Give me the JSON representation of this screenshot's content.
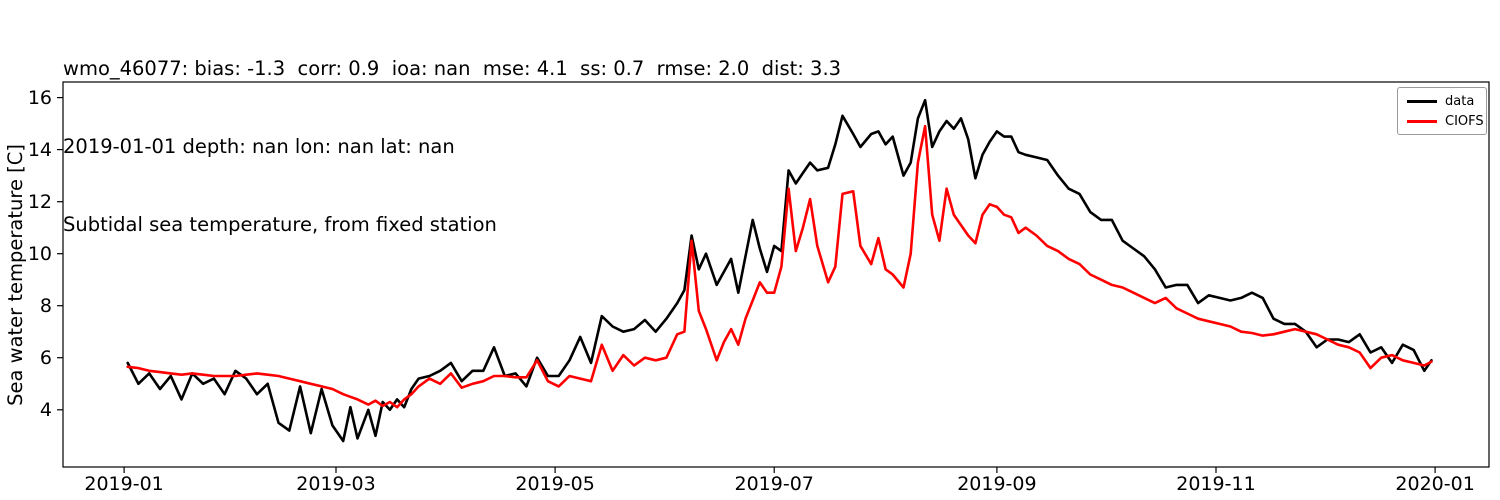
{
  "title": {
    "line1": "wmo_46077: bias: -1.3  corr: 0.9  ioa: nan  mse: 4.1  ss: 0.7  rmse: 2.0  dist: 3.3",
    "line2": "2019-01-01 depth: nan lon: nan lat: nan",
    "line3": "Subtidal sea temperature, from fixed station"
  },
  "legend": {
    "entries": [
      {
        "label": "data",
        "color": "#000000"
      },
      {
        "label": "CIOFS",
        "color": "#ff0000"
      }
    ]
  },
  "chart_data": {
    "type": "line",
    "title": "wmo_46077: bias: -1.3  corr: 0.9  ioa: nan  mse: 4.1  ss: 0.7  rmse: 2.0  dist: 3.3",
    "subtitle": "2019-01-01 depth: nan lon: nan lat: nan",
    "axes_title": "Subtidal sea temperature, from fixed station",
    "xlabel": "",
    "ylabel": "Sea water temperature [C]",
    "grid": false,
    "legend_position": "upper right",
    "x_axis": {
      "start_date": "2019-01-01",
      "unit": "days since 2019-01-01",
      "tick_days": [
        0,
        59,
        120,
        181,
        243,
        304,
        365
      ],
      "tick_labels": [
        "2019-01",
        "2019-03",
        "2019-05",
        "2019-07",
        "2019-09",
        "2019-11",
        "2020-01"
      ],
      "xlim_days": [
        -17,
        380
      ]
    },
    "y_axis": {
      "ticks": [
        4,
        6,
        8,
        10,
        12,
        14,
        16
      ],
      "tick_labels": [
        "4",
        "6",
        "8",
        "10",
        "12",
        "14",
        "16"
      ],
      "ylim": [
        1.8,
        16.6
      ]
    },
    "x_days": [
      1,
      4,
      7,
      10,
      13,
      16,
      19,
      22,
      25,
      28,
      31,
      34,
      37,
      40,
      43,
      46,
      49,
      52,
      55,
      58,
      61,
      63,
      65,
      68,
      70,
      72,
      74,
      76,
      78,
      80,
      82,
      85,
      88,
      91,
      94,
      97,
      100,
      103,
      106,
      109,
      112,
      115,
      118,
      121,
      124,
      127,
      130,
      133,
      136,
      139,
      142,
      145,
      148,
      151,
      154,
      156,
      158,
      160,
      162,
      165,
      167,
      169,
      171,
      173,
      175,
      177,
      179,
      181,
      183,
      185,
      187,
      189,
      191,
      193,
      196,
      198,
      200,
      203,
      205,
      208,
      210,
      212,
      214,
      217,
      219,
      221,
      223,
      225,
      227,
      229,
      231,
      233,
      235,
      237,
      239,
      241,
      243,
      245,
      247,
      249,
      251,
      254,
      257,
      260,
      263,
      266,
      269,
      272,
      275,
      278,
      281,
      284,
      287,
      290,
      293,
      296,
      299,
      302,
      305,
      308,
      311,
      314,
      317,
      320,
      323,
      326,
      329,
      332,
      335,
      338,
      341,
      344,
      347,
      350,
      353,
      356,
      359,
      362,
      364
    ],
    "series": [
      {
        "name": "data",
        "color": "#000000",
        "line_width": 2.6,
        "values": [
          5.8,
          5.0,
          5.4,
          4.8,
          5.3,
          4.4,
          5.4,
          5.0,
          5.2,
          4.6,
          5.5,
          5.2,
          4.6,
          5.0,
          3.5,
          3.2,
          4.9,
          3.1,
          4.8,
          3.4,
          2.8,
          4.1,
          2.9,
          4.0,
          3.0,
          4.3,
          4.0,
          4.4,
          4.1,
          4.8,
          5.2,
          5.3,
          5.5,
          5.8,
          5.1,
          5.5,
          5.5,
          6.4,
          5.3,
          5.4,
          4.9,
          6.0,
          5.3,
          5.3,
          5.9,
          6.8,
          5.8,
          7.6,
          7.2,
          7.0,
          7.1,
          7.45,
          7.0,
          7.5,
          8.1,
          8.6,
          10.7,
          9.4,
          10.0,
          8.8,
          9.3,
          9.8,
          8.5,
          9.9,
          11.3,
          10.2,
          9.3,
          10.3,
          10.1,
          13.2,
          12.7,
          13.1,
          13.5,
          13.2,
          13.3,
          14.2,
          15.3,
          14.6,
          14.1,
          14.6,
          14.7,
          14.2,
          14.5,
          13.0,
          13.5,
          15.2,
          15.9,
          14.1,
          14.7,
          15.1,
          14.8,
          15.2,
          14.4,
          12.9,
          13.8,
          14.3,
          14.7,
          14.5,
          14.5,
          13.9,
          13.8,
          13.7,
          13.6,
          13.0,
          12.5,
          12.3,
          11.6,
          11.3,
          11.3,
          10.5,
          10.2,
          9.9,
          9.4,
          8.7,
          8.8,
          8.8,
          8.1,
          8.4,
          8.3,
          8.2,
          8.3,
          8.5,
          8.3,
          7.5,
          7.3,
          7.3,
          7.0,
          6.4,
          6.7,
          6.7,
          6.6,
          6.9,
          6.2,
          6.4,
          5.8,
          6.5,
          6.3,
          5.5,
          5.9
        ]
      },
      {
        "name": "CIOFS",
        "color": "#ff0000",
        "line_width": 2.6,
        "values": [
          5.65,
          5.6,
          5.5,
          5.45,
          5.4,
          5.35,
          5.4,
          5.35,
          5.3,
          5.3,
          5.3,
          5.35,
          5.4,
          5.35,
          5.3,
          5.2,
          5.1,
          5.0,
          4.9,
          4.8,
          4.6,
          4.5,
          4.4,
          4.2,
          4.35,
          4.15,
          4.3,
          4.1,
          4.4,
          4.6,
          4.9,
          5.2,
          5.0,
          5.4,
          4.85,
          5.0,
          5.1,
          5.3,
          5.3,
          5.25,
          5.25,
          5.9,
          5.1,
          4.9,
          5.3,
          5.2,
          5.1,
          6.5,
          5.5,
          6.1,
          5.7,
          6.0,
          5.9,
          6.0,
          6.9,
          7.0,
          10.5,
          7.8,
          7.1,
          5.9,
          6.6,
          7.1,
          6.5,
          7.5,
          8.2,
          8.9,
          8.5,
          8.5,
          9.5,
          12.5,
          10.1,
          11.0,
          12.1,
          10.3,
          8.9,
          9.5,
          12.3,
          12.4,
          10.3,
          9.6,
          10.6,
          9.4,
          9.2,
          8.7,
          10.0,
          13.5,
          14.9,
          11.5,
          10.5,
          12.5,
          11.5,
          11.1,
          10.7,
          10.4,
          11.5,
          11.9,
          11.8,
          11.5,
          11.4,
          10.8,
          11.0,
          10.7,
          10.3,
          10.1,
          9.8,
          9.6,
          9.2,
          9.0,
          8.8,
          8.7,
          8.5,
          8.3,
          8.1,
          8.3,
          7.9,
          7.7,
          7.5,
          7.4,
          7.3,
          7.2,
          7.0,
          6.95,
          6.85,
          6.9,
          7.0,
          7.1,
          7.0,
          6.9,
          6.7,
          6.5,
          6.4,
          6.2,
          5.6,
          6.0,
          6.1,
          5.9,
          5.8,
          5.7,
          5.85
        ]
      }
    ]
  }
}
